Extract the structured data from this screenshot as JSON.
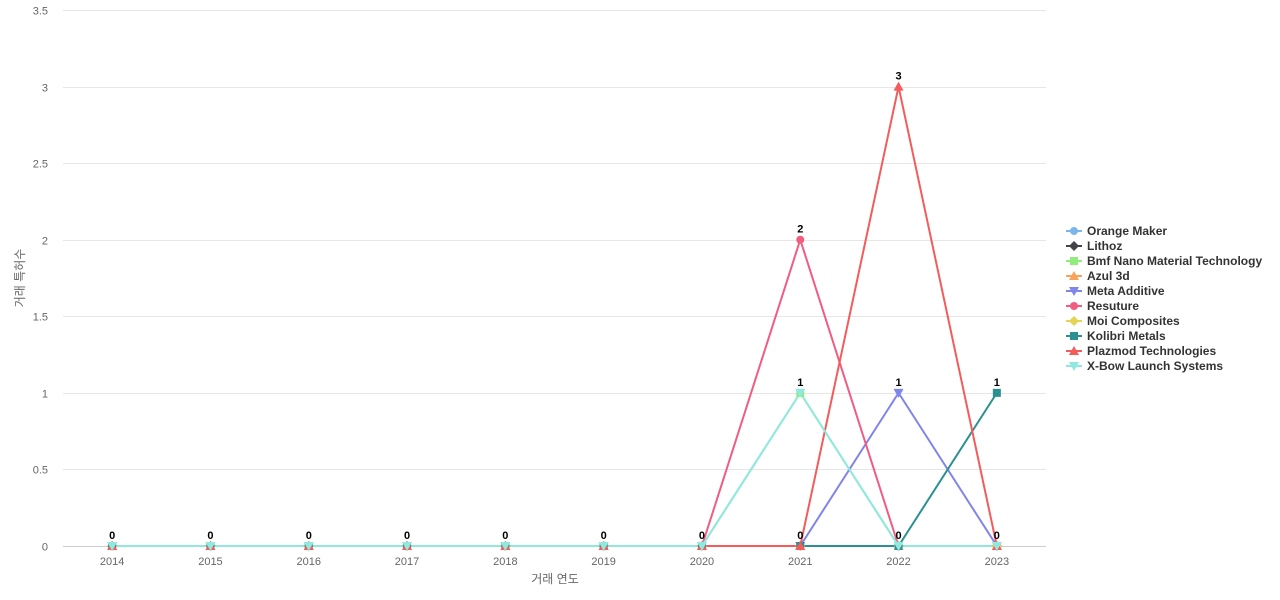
{
  "chart_data": {
    "type": "line",
    "title": "",
    "xlabel": "거래 연도",
    "ylabel": "거래 특허수",
    "ylim": [
      0,
      3.5
    ],
    "yticks": [
      "0",
      "0.5",
      "1",
      "1.5",
      "2",
      "2.5",
      "3",
      "3.5"
    ],
    "grid": true,
    "legend_position": "right",
    "categories": [
      "2014",
      "2015",
      "2016",
      "2017",
      "2018",
      "2019",
      "2020",
      "2021",
      "2022",
      "2023"
    ],
    "series": [
      {
        "name": "Orange Maker",
        "color": "#7cb5ec",
        "marker": "circle",
        "values": [
          0,
          0,
          0,
          0,
          0,
          0,
          0,
          0,
          0,
          0
        ]
      },
      {
        "name": "Lithoz",
        "color": "#434348",
        "marker": "diamond",
        "values": [
          0,
          0,
          0,
          0,
          0,
          0,
          0,
          0,
          0,
          0
        ]
      },
      {
        "name": "Bmf Nano Material Technology",
        "color": "#90ed7d",
        "marker": "square",
        "values": [
          0,
          0,
          0,
          0,
          0,
          0,
          0,
          1,
          0,
          0
        ]
      },
      {
        "name": "Azul 3d",
        "color": "#f7a35c",
        "marker": "triangle",
        "values": [
          0,
          0,
          0,
          0,
          0,
          0,
          0,
          0,
          0,
          0
        ]
      },
      {
        "name": "Meta Additive",
        "color": "#8085e9",
        "marker": "triangle-down",
        "values": [
          0,
          0,
          0,
          0,
          0,
          0,
          0,
          0,
          1,
          0
        ]
      },
      {
        "name": "Resuture",
        "color": "#f15c80",
        "marker": "circle",
        "values": [
          0,
          0,
          0,
          0,
          0,
          0,
          0,
          2,
          0,
          0
        ]
      },
      {
        "name": "Moi Composites",
        "color": "#e4d354",
        "marker": "diamond",
        "values": [
          0,
          0,
          0,
          0,
          0,
          0,
          0,
          0,
          0,
          0
        ]
      },
      {
        "name": "Kolibri Metals",
        "color": "#2b908f",
        "marker": "square",
        "values": [
          0,
          0,
          0,
          0,
          0,
          0,
          0,
          0,
          0,
          1
        ]
      },
      {
        "name": "Plazmod Technologies",
        "color": "#f45b5b",
        "marker": "triangle",
        "values": [
          0,
          0,
          0,
          0,
          0,
          0,
          0,
          0,
          3,
          0
        ]
      },
      {
        "name": "X-Bow Launch Systems",
        "color": "#91e8e1",
        "marker": "triangle-down",
        "values": [
          0,
          0,
          0,
          0,
          0,
          0,
          0,
          1,
          0,
          0
        ]
      }
    ],
    "data_labels": [
      "0",
      "0",
      "0",
      "0",
      "0",
      "0",
      "0",
      "2",
      "3",
      "1"
    ],
    "data_labels_secondary": [
      "",
      "",
      "",
      "",
      "",
      "",
      "",
      "1",
      "1",
      ""
    ],
    "data_labels_bottom": [
      "",
      "",
      "",
      "",
      "",
      "",
      "",
      "0",
      "0",
      "0"
    ]
  }
}
